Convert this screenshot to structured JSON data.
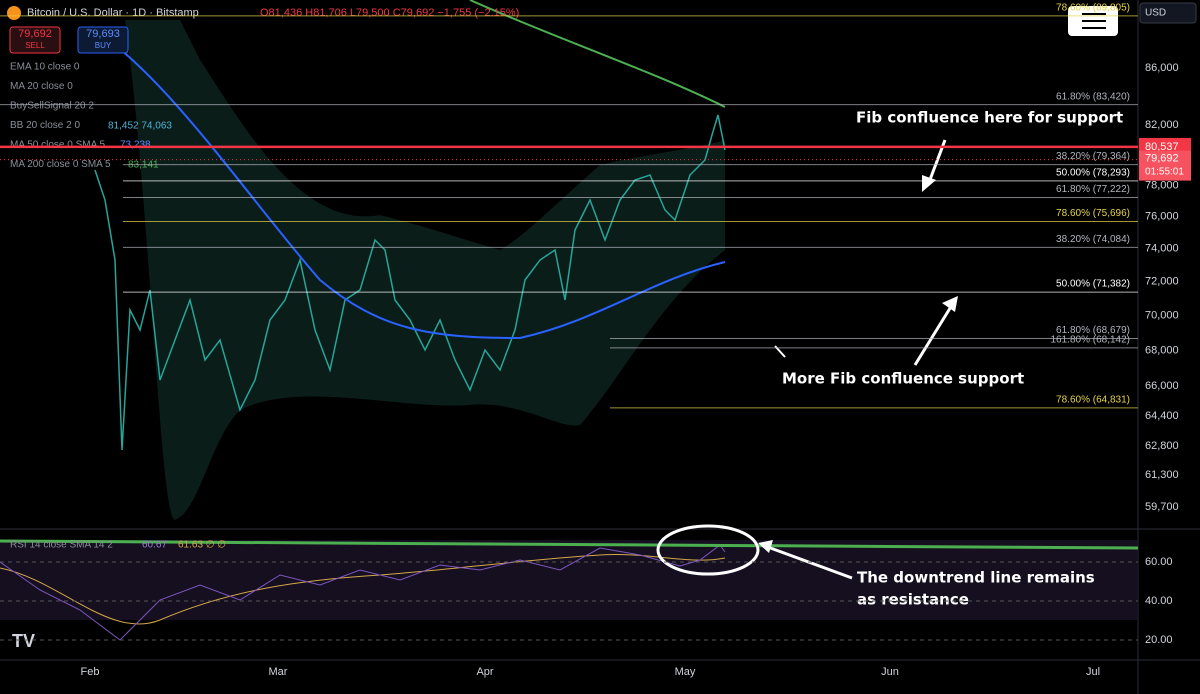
{
  "header": {
    "symbol": "Bitcoin / U.S. Dollar · 1D · Bitstamp",
    "ohlc": "O81,436 H81,706 L79,500 C79,692 −1,755 (−2.15%)",
    "sell_price": "79,692",
    "sell": "SELL",
    "buy_price": "79,693",
    "buy": "BUY",
    "currency": "USD"
  },
  "indicators": [
    "EMA 10 close 0",
    "MA 20 close 0",
    "BuySellSignal 20 2",
    "BB 20 close 2 0",
    "MA 50 close 0 SMA 5",
    "MA 200 close 0 SMA 5"
  ],
  "indicator_values": {
    "bb": "81,452 74,063",
    "ma50": "73,238",
    "ma200": "83,141"
  },
  "price_axis": {
    "log": true,
    "ticks": [
      {
        "value": 86000,
        "label": "86,000"
      },
      {
        "value": 82000,
        "label": "82,000"
      },
      {
        "value": 78000,
        "label": "78,000"
      },
      {
        "value": 76000,
        "label": "76,000"
      },
      {
        "value": 74000,
        "label": "74,000"
      },
      {
        "value": 72000,
        "label": "72,000"
      },
      {
        "value": 70000,
        "label": "70,000"
      },
      {
        "value": 68000,
        "label": "68,000"
      },
      {
        "value": 66000,
        "label": "66,000"
      },
      {
        "value": 64400,
        "label": "64,400"
      },
      {
        "value": 62800,
        "label": "62,800"
      },
      {
        "value": 61300,
        "label": "61,300"
      },
      {
        "value": 59700,
        "label": "59,700"
      }
    ],
    "last_close": {
      "value": 80537,
      "label": "80,537"
    },
    "current": {
      "value": 79692,
      "label": "79,692",
      "countdown": "01:55:01"
    }
  },
  "fib_levels": [
    {
      "value": 89805,
      "label": "78.60% (89,805)",
      "color": "#e5d44a"
    },
    {
      "value": 83420,
      "label": "61.80% (83,420)",
      "color": "#b2b5be"
    },
    {
      "value": 79364,
      "label": "38.20% (79,364)",
      "color": "#b2b5be"
    },
    {
      "value": 78293,
      "label": "50.00% (78,293)",
      "color": "#ffffff"
    },
    {
      "value": 77222,
      "label": "61.80% (77,222)",
      "color": "#b2b5be"
    },
    {
      "value": 75696,
      "label": "78.60% (75,696)",
      "color": "#e5d44a"
    },
    {
      "value": 74084,
      "label": "38.20% (74,084)",
      "color": "#b2b5be"
    },
    {
      "value": 71382,
      "label": "50.00% (71,382)",
      "color": "#ffffff"
    },
    {
      "value": 68679,
      "label": "61.80% (68,679)",
      "color": "#b2b5be"
    },
    {
      "value": 68142,
      "label": "161.80% (68,142)",
      "color": "#b2b5be"
    },
    {
      "value": 64831,
      "label": "78.60% (64,831)",
      "color": "#e5d44a"
    }
  ],
  "rsi": {
    "legend": "RSI 14 close SMA 14 2",
    "values": "60.67",
    "sma": "61.63 ∅ ∅",
    "ticks": [
      {
        "value": 60,
        "label": "60.00"
      },
      {
        "value": 40,
        "label": "40.00"
      },
      {
        "value": 20,
        "label": "20.00"
      }
    ]
  },
  "dates": [
    "Feb",
    "Mar",
    "Apr",
    "May",
    "Jun",
    "Jul"
  ],
  "annotations": {
    "fib_top": "Fib confluence here for support",
    "fib_bottom": "More Fib confluence support",
    "rsi_line1": "The downtrend line remains",
    "rsi_line2": "as resistance"
  }
}
